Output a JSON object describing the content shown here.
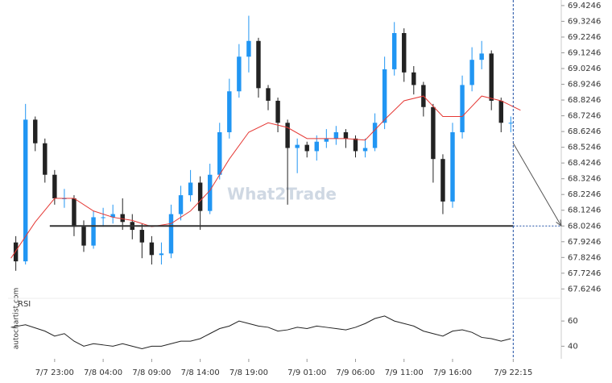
{
  "chart_data": [
    {
      "type": "candlestick",
      "watermark": "What2Trade",
      "source": "autochartist.com",
      "up_color": "#2196f3",
      "down_color": "#222222",
      "x": [
        -4,
        -3,
        -2,
        -1,
        0,
        1,
        2,
        3,
        4,
        5,
        6,
        7,
        8,
        9,
        10,
        11,
        12,
        13,
        14,
        15,
        16,
        17,
        18,
        19,
        20,
        21,
        22,
        23,
        24,
        25,
        26,
        27,
        28,
        29,
        30,
        31,
        32,
        33,
        34,
        35,
        36,
        37,
        38,
        39,
        40,
        41,
        42,
        43,
        44,
        45,
        46,
        47
      ],
      "open": [
        67.92,
        67.8,
        68.7,
        68.55,
        68.35,
        68.2,
        68.2,
        68.02,
        67.9,
        68.08,
        68.08,
        68.1,
        68.05,
        68.0,
        67.92,
        67.84,
        67.85,
        68.1,
        68.22,
        68.3,
        68.12,
        68.35,
        68.62,
        68.88,
        69.1,
        69.2,
        68.9,
        68.82,
        68.68,
        68.52,
        68.54,
        68.5,
        68.56,
        68.58,
        68.62,
        68.58,
        68.5,
        68.52,
        68.68,
        69.02,
        69.25,
        69.0,
        68.92,
        68.78,
        68.45,
        68.18,
        68.62,
        68.92,
        69.08,
        69.12,
        68.82,
        68.68
      ],
      "high": [
        67.96,
        68.8,
        68.72,
        68.58,
        68.38,
        68.26,
        68.22,
        68.06,
        68.12,
        68.14,
        68.16,
        68.2,
        68.1,
        68.04,
        67.96,
        67.92,
        68.16,
        68.28,
        68.38,
        68.34,
        68.42,
        68.68,
        68.96,
        69.18,
        69.36,
        69.22,
        68.92,
        68.84,
        68.7,
        68.58,
        68.56,
        68.6,
        68.64,
        68.66,
        68.64,
        68.6,
        68.58,
        68.74,
        69.1,
        69.32,
        69.28,
        69.04,
        68.94,
        68.8,
        68.48,
        68.68,
        68.98,
        69.16,
        69.2,
        69.14,
        68.84,
        68.72
      ],
      "low": [
        67.74,
        67.78,
        68.5,
        68.3,
        68.16,
        68.14,
        67.96,
        67.86,
        67.88,
        68.02,
        68.04,
        68.0,
        67.94,
        67.82,
        67.78,
        67.78,
        67.82,
        68.06,
        68.18,
        68.0,
        68.1,
        68.32,
        68.58,
        68.84,
        69.0,
        68.84,
        68.76,
        68.62,
        68.16,
        68.36,
        68.46,
        68.44,
        68.52,
        68.54,
        68.52,
        68.46,
        68.46,
        68.5,
        68.64,
        68.98,
        68.94,
        68.86,
        68.72,
        68.3,
        68.1,
        68.14,
        68.58,
        68.88,
        69.02,
        68.76,
        68.62,
        68.62
      ],
      "close": [
        67.8,
        68.7,
        68.55,
        68.35,
        68.2,
        68.2,
        68.02,
        67.9,
        68.08,
        68.08,
        68.1,
        68.05,
        68.0,
        67.92,
        67.84,
        67.85,
        68.1,
        68.22,
        68.3,
        68.12,
        68.35,
        68.62,
        68.88,
        69.1,
        69.2,
        68.9,
        68.82,
        68.68,
        68.52,
        68.54,
        68.5,
        68.56,
        68.58,
        68.62,
        68.58,
        68.5,
        68.52,
        68.68,
        69.02,
        69.25,
        69.0,
        68.92,
        68.78,
        68.45,
        68.18,
        68.62,
        68.92,
        69.08,
        69.12,
        68.82,
        68.68,
        68.68
      ],
      "ma": {
        "color": "#e53935",
        "x": [
          -4.5,
          -2,
          0,
          2,
          4,
          6,
          8,
          10,
          12,
          14,
          16,
          18,
          20,
          22,
          24,
          26,
          28,
          30,
          32,
          34,
          36,
          38,
          40,
          42,
          44,
          46,
          48
        ],
        "values": [
          67.82,
          68.05,
          68.2,
          68.2,
          68.12,
          68.08,
          68.06,
          68.02,
          68.04,
          68.12,
          68.25,
          68.45,
          68.62,
          68.68,
          68.65,
          68.58,
          68.58,
          68.58,
          68.57,
          68.7,
          68.82,
          68.85,
          68.72,
          68.72,
          68.85,
          68.82,
          68.76
        ]
      },
      "level": 68.0246,
      "level_start": -0.5,
      "now": 47.25,
      "forecast_start": [
        47.25,
        68.55
      ],
      "xlim": [
        -4.8,
        52.2
      ],
      "ylim": [
        67.565,
        69.46
      ],
      "yticks": [
        67.6246,
        67.7246,
        67.8246,
        67.9246,
        68.0246,
        68.1246,
        68.2246,
        68.3246,
        68.4246,
        68.5246,
        68.6246,
        68.7246,
        68.8246,
        68.9246,
        69.0246,
        69.1246,
        69.2246,
        69.3246,
        69.4246
      ],
      "xticks": [
        {
          "value": 0,
          "label": "7/7 23:00"
        },
        {
          "value": 5,
          "label": "7/8 04:00"
        },
        {
          "value": 10,
          "label": "7/8 09:00"
        },
        {
          "value": 15,
          "label": "7/8 14:00"
        },
        {
          "value": 20,
          "label": "7/8 19:00"
        },
        {
          "value": 26,
          "label": "7/9 01:00"
        },
        {
          "value": 31,
          "label": "7/9 06:00"
        },
        {
          "value": 36,
          "label": "7/9 11:00"
        },
        {
          "value": 41,
          "label": "7/9 16:00"
        },
        {
          "value": 47.25,
          "label": "7/9 22:15"
        }
      ]
    },
    {
      "type": "line",
      "title": "RSI",
      "color": "#222222",
      "x": [
        -4.5,
        -3,
        -1,
        0,
        1,
        2,
        3,
        4,
        5,
        6,
        7,
        8,
        9,
        10,
        11,
        12,
        13,
        14,
        15,
        16,
        17,
        18,
        19,
        20,
        21,
        22,
        23,
        24,
        25,
        26,
        27,
        28,
        29,
        30,
        31,
        32,
        33,
        34,
        35,
        36,
        37,
        38,
        39,
        40,
        41,
        42,
        43,
        44,
        45,
        46,
        47
      ],
      "values": [
        55,
        57,
        52,
        48,
        50,
        44,
        40,
        42,
        41,
        40,
        42,
        40,
        38,
        40,
        40,
        42,
        44,
        44,
        46,
        50,
        54,
        56,
        60,
        58,
        56,
        55,
        52,
        53,
        55,
        54,
        56,
        55,
        54,
        53,
        55,
        58,
        62,
        64,
        60,
        58,
        56,
        52,
        50,
        48,
        52,
        53,
        51,
        47,
        46,
        44,
        46
      ],
      "ylim": [
        30,
        78
      ],
      "yticks": [
        40,
        60
      ]
    }
  ]
}
